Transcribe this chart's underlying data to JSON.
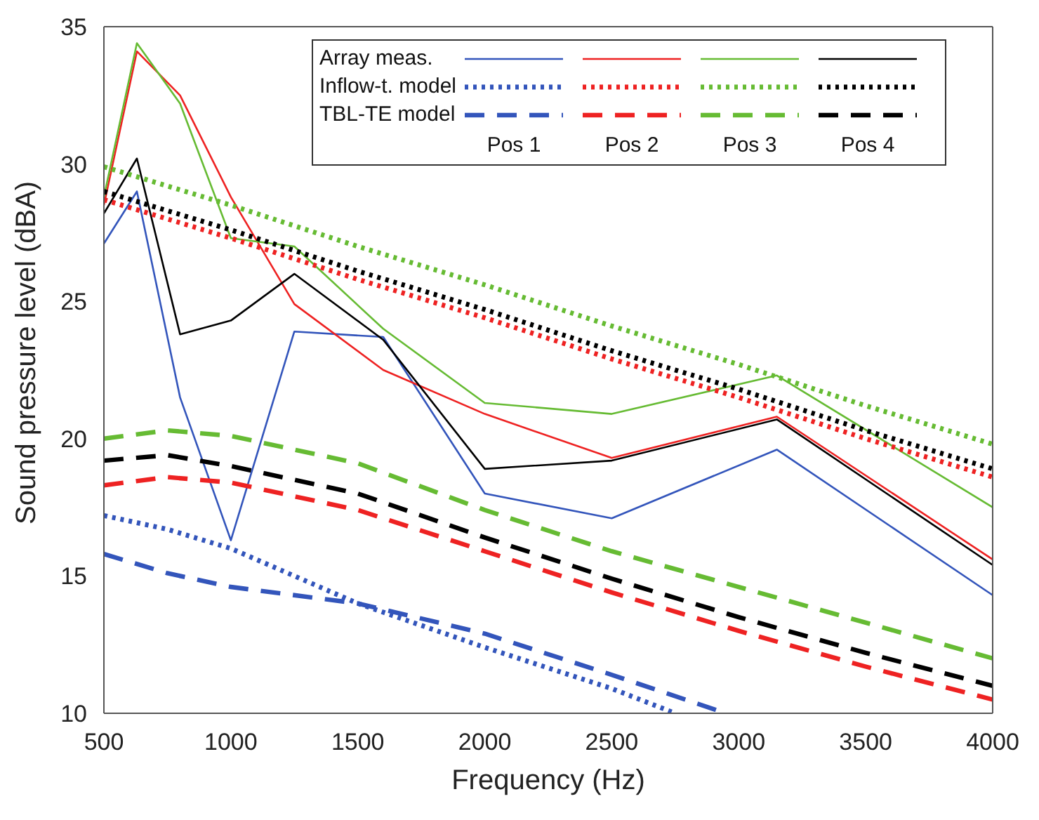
{
  "chart_data": {
    "type": "line",
    "xlabel": "Frequency (Hz)",
    "ylabel": "Sound pressure level (dBA)",
    "xlim": [
      500,
      4000
    ],
    "xticks": [
      500,
      1000,
      1500,
      2000,
      2500,
      3000,
      3500,
      4000
    ],
    "ylim": [
      10,
      35
    ],
    "yticks": [
      10,
      15,
      20,
      25,
      30,
      35
    ],
    "grid": false,
    "marker": "none",
    "annotations": [
      "Array meas.",
      "Inflow-t. model",
      "TBL-TE model",
      "Pos 1",
      "Pos 2",
      "Pos 3",
      "Pos 4"
    ],
    "series": [
      {
        "color": "#3355bb",
        "line_style": "solid",
        "x": [
          500,
          630,
          800,
          1000,
          1250,
          1600,
          2000,
          2500,
          3150,
          4000
        ],
        "values": [
          27.1,
          29.0,
          21.5,
          16.3,
          23.9,
          23.7,
          18.0,
          17.1,
          19.6,
          14.3
        ]
      },
      {
        "color": "#ee2222",
        "line_style": "solid",
        "x": [
          500,
          630,
          800,
          1000,
          1250,
          1600,
          2000,
          2500,
          3150,
          4000
        ],
        "values": [
          28.5,
          34.1,
          32.5,
          28.8,
          24.9,
          22.5,
          20.9,
          19.3,
          20.8,
          15.6
        ]
      },
      {
        "color": "#66bb33",
        "line_style": "solid",
        "x": [
          500,
          630,
          800,
          1000,
          1250,
          1600,
          2000,
          2500,
          3150,
          4000
        ],
        "values": [
          28.8,
          34.4,
          32.2,
          27.3,
          27.0,
          24.0,
          21.3,
          20.9,
          22.3,
          17.5
        ]
      },
      {
        "color": "#000000",
        "line_style": "solid",
        "x": [
          500,
          630,
          800,
          1000,
          1250,
          1600,
          2000,
          2500,
          3150,
          4000
        ],
        "values": [
          28.2,
          30.2,
          23.8,
          24.3,
          26.0,
          23.6,
          18.9,
          19.2,
          20.7,
          15.4
        ]
      },
      {
        "color": "#3355bb",
        "line_style": "dotted",
        "x": [
          500,
          750,
          1000,
          1500,
          2000,
          2500,
          2750
        ],
        "values": [
          17.2,
          16.7,
          16.0,
          14.0,
          12.4,
          10.9,
          10.0
        ]
      },
      {
        "color": "#ee2222",
        "line_style": "dotted",
        "x": [
          500,
          1000,
          1500,
          2000,
          2500,
          3000,
          3500,
          4000
        ],
        "values": [
          28.7,
          27.3,
          25.8,
          24.4,
          22.9,
          21.5,
          20.0,
          18.6
        ]
      },
      {
        "color": "#66bb33",
        "line_style": "dotted",
        "x": [
          500,
          1000,
          1500,
          2000,
          2500,
          3000,
          3500,
          4000
        ],
        "values": [
          29.9,
          28.5,
          27.0,
          25.6,
          24.1,
          22.7,
          21.2,
          19.8
        ]
      },
      {
        "color": "#000000",
        "line_style": "dotted",
        "x": [
          500,
          1000,
          1500,
          2000,
          2500,
          3000,
          3500,
          4000
        ],
        "values": [
          29.0,
          27.6,
          26.1,
          24.7,
          23.2,
          21.8,
          20.3,
          18.9
        ]
      },
      {
        "color": "#3355bb",
        "line_style": "dashed",
        "x": [
          500,
          750,
          1000,
          1500,
          2000,
          2500,
          2950
        ],
        "values": [
          15.8,
          15.1,
          14.6,
          14.0,
          12.9,
          11.4,
          10.0
        ]
      },
      {
        "color": "#ee2222",
        "line_style": "dashed",
        "x": [
          500,
          750,
          1000,
          1500,
          2000,
          2500,
          3000,
          3500,
          4000
        ],
        "values": [
          18.3,
          18.6,
          18.4,
          17.4,
          15.9,
          14.4,
          13.0,
          11.7,
          10.5
        ]
      },
      {
        "color": "#66bb33",
        "line_style": "dashed",
        "x": [
          500,
          750,
          1000,
          1500,
          2000,
          2500,
          3000,
          3500,
          4000
        ],
        "values": [
          20.0,
          20.3,
          20.1,
          19.1,
          17.4,
          15.9,
          14.6,
          13.3,
          12.0
        ]
      },
      {
        "color": "#000000",
        "line_style": "dashed",
        "x": [
          500,
          750,
          1000,
          1500,
          2000,
          2500,
          3000,
          3500,
          4000
        ],
        "values": [
          19.2,
          19.4,
          19.0,
          18.0,
          16.4,
          14.9,
          13.5,
          12.2,
          11.0
        ]
      }
    ]
  }
}
